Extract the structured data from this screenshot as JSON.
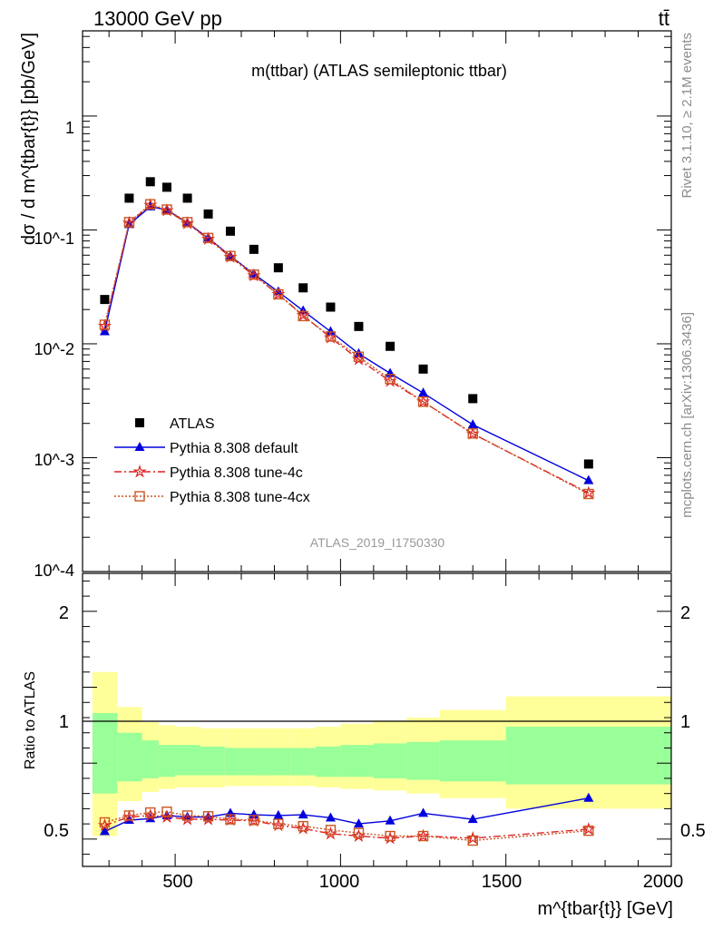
{
  "header": {
    "left": "13000 GeV pp",
    "right": "tt̄"
  },
  "side_labels": {
    "rivet": "Rivet 3.1.10, ≥ 2.1M events",
    "mcplots": "mcplots.cern.ch [arXiv:1306.3436]"
  },
  "chart_data": [
    {
      "type": "scatter",
      "title": "m(ttbar) (ATLAS semileptonic ttbar)",
      "analysis_label": "ATLAS_2019_I1750330",
      "ylabel": "dσ / d m^{tbar{t}} [pb/GeV]",
      "xlabel": "m^{tbar{t}} [GeV]",
      "xlim": [
        220,
        2000
      ],
      "ylim": [
        0.0001,
        5.6
      ],
      "yscale": "log",
      "ytick_labels": [
        "1",
        "10^-1",
        "10^-2",
        "10^-3",
        "10^-4"
      ],
      "x_bin_edges": [
        250,
        325,
        400,
        450,
        500,
        575,
        650,
        700,
        775,
        850,
        925,
        1000,
        1100,
        1200,
        1300,
        1500,
        2000
      ],
      "x": [
        287,
        361,
        425,
        475,
        537,
        600,
        667,
        738,
        812,
        887,
        970,
        1055,
        1150,
        1250,
        1400,
        1750
      ],
      "legend": [
        "ATLAS",
        "Pythia 8.308 default",
        "Pythia 8.308 tune-4c",
        "Pythia 8.308 tune-4cx"
      ],
      "legend_position": "lower-left",
      "series": [
        {
          "name": "ATLAS",
          "color": "#000000",
          "marker": "square",
          "values": [
            0.0245,
            0.19,
            0.265,
            0.237,
            0.19,
            0.138,
            0.0975,
            0.0675,
            0.0465,
            0.031,
            0.021,
            0.0142,
            0.0095,
            0.006,
            0.0033,
            0.00088
          ]
        },
        {
          "name": "Pythia 8.308 default",
          "color": "#0000dd",
          "marker": "triangle",
          "values": [
            0.0128,
            0.112,
            0.16,
            0.15,
            0.115,
            0.085,
            0.059,
            0.041,
            0.0287,
            0.0195,
            0.0128,
            0.0082,
            0.0055,
            0.0037,
            0.00195,
            0.00063
          ]
        },
        {
          "name": "Pythia 8.308 tune-4c",
          "color": "#dd2222",
          "marker": "star",
          "values": [
            0.0143,
            0.115,
            0.165,
            0.148,
            0.114,
            0.083,
            0.0578,
            0.0397,
            0.0272,
            0.0178,
            0.0113,
            0.0073,
            0.0047,
            0.0031,
            0.00162,
            0.00049
          ]
        },
        {
          "name": "Pythia 8.308 tune-4cx",
          "color": "#cc5522",
          "marker": "open-square",
          "values": [
            0.0147,
            0.117,
            0.168,
            0.151,
            0.117,
            0.085,
            0.059,
            0.0405,
            0.0272,
            0.0175,
            0.0116,
            0.0077,
            0.0049,
            0.0031,
            0.00163,
            0.00048
          ]
        }
      ]
    },
    {
      "type": "scatter",
      "ylabel": "Ratio to ATLAS",
      "xlabel": "m^{tbar{t}} [GeV]",
      "xlim": [
        220,
        2000
      ],
      "ylim": [
        0.32,
        2.25
      ],
      "ytick_labels": [
        "2",
        "1",
        "0.5"
      ],
      "xtick_labels": [
        "500",
        "1000",
        "1500",
        "2000"
      ],
      "reference_line": 1,
      "uncertainty_bands": {
        "inner_color": "#99ff99",
        "outer_color": "#ffff99",
        "inner": [
          [
            0.8,
            1.33
          ],
          [
            0.88,
            1.2
          ],
          [
            0.9,
            1.15
          ],
          [
            0.91,
            1.12
          ],
          [
            0.92,
            1.12
          ],
          [
            0.92,
            1.11
          ],
          [
            0.92,
            1.1
          ],
          [
            0.92,
            1.1
          ],
          [
            0.92,
            1.1
          ],
          [
            0.92,
            1.1
          ],
          [
            0.91,
            1.11
          ],
          [
            0.91,
            1.12
          ],
          [
            0.9,
            1.13
          ],
          [
            0.89,
            1.14
          ],
          [
            0.88,
            1.15
          ],
          [
            0.86,
            1.24
          ]
        ],
        "outer": [
          [
            0.52,
            1.6
          ],
          [
            0.75,
            1.37
          ],
          [
            0.81,
            1.27
          ],
          [
            0.83,
            1.25
          ],
          [
            0.84,
            1.24
          ],
          [
            0.84,
            1.23
          ],
          [
            0.85,
            1.23
          ],
          [
            0.85,
            1.23
          ],
          [
            0.85,
            1.23
          ],
          [
            0.85,
            1.23
          ],
          [
            0.84,
            1.24
          ],
          [
            0.83,
            1.26
          ],
          [
            0.82,
            1.28
          ],
          [
            0.8,
            1.3
          ],
          [
            0.77,
            1.35
          ],
          [
            0.7,
            1.44
          ]
        ]
      },
      "series": [
        {
          "name": "Pythia 8.308 default",
          "color": "#0000dd",
          "marker": "triangle",
          "values": [
            0.55,
            0.625,
            0.635,
            0.655,
            0.645,
            0.645,
            0.67,
            0.66,
            0.655,
            0.66,
            0.64,
            0.6,
            0.62,
            0.67,
            0.63,
            0.77
          ]
        },
        {
          "name": "Pythia 8.308 tune-4c",
          "color": "#dd2222",
          "marker": "star",
          "values": [
            0.59,
            0.645,
            0.655,
            0.645,
            0.63,
            0.63,
            0.625,
            0.62,
            0.59,
            0.57,
            0.535,
            0.52,
            0.505,
            0.52,
            0.505,
            0.565
          ]
        },
        {
          "name": "Pythia 8.308 tune-4cx",
          "color": "#cc5522",
          "marker": "open-square",
          "values": [
            0.61,
            0.655,
            0.675,
            0.68,
            0.655,
            0.65,
            0.63,
            0.625,
            0.6,
            0.585,
            0.56,
            0.54,
            0.52,
            0.52,
            0.49,
            0.555
          ]
        }
      ]
    }
  ]
}
